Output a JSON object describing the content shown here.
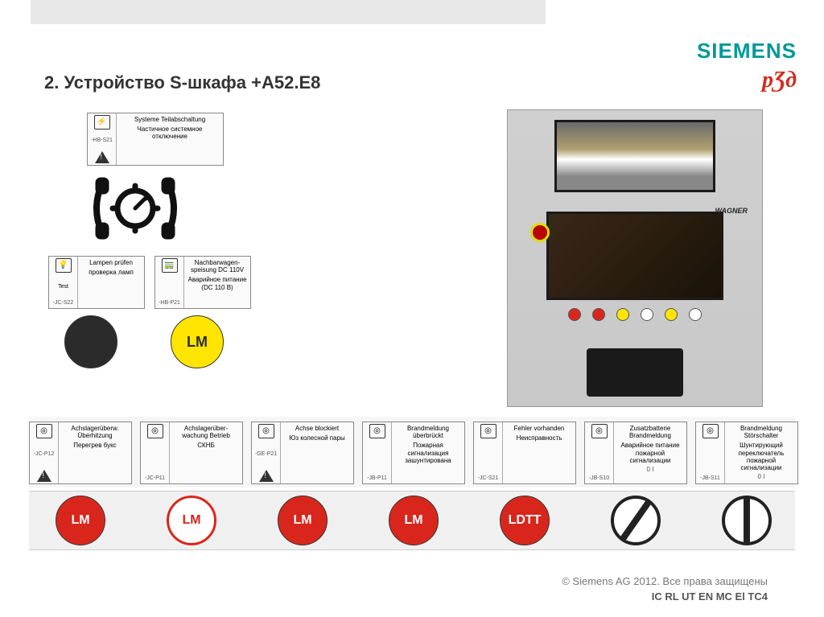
{
  "branding": {
    "siemens": "SIEMENS",
    "rzd": "рƷд"
  },
  "title": "2. Устройство S-шкафа +A52.E8",
  "colors": {
    "siemens_teal": "#009999",
    "rzd_red": "#d52b1e",
    "btn_black": "#2b2b2b",
    "btn_yellow": "#ffe500",
    "btn_red": "#d9261c",
    "btn_white": "#ffffff",
    "label_border": "#888888",
    "gray_strip": "#f0f0f0"
  },
  "top_label": {
    "code": "-HB-S21",
    "de": "Systeme Teilabschaltung",
    "ru": "Частичное системное отключение",
    "has_warning": true
  },
  "mid_labels": [
    {
      "code": "-JC-S22",
      "de": "Lampen prüfen",
      "ru": "проверка ламп",
      "icon_text": "Test"
    },
    {
      "code": "-HB-P21",
      "de": "Nachbarwagen-speisung DC 110V",
      "ru": "Аварийное питание (DC 110 В)"
    }
  ],
  "mid_buttons": [
    {
      "label": "",
      "color": "#2b2b2b",
      "text_color": "#ffffff"
    },
    {
      "label": "LM",
      "color": "#ffe500",
      "text_color": "#2b2b2b"
    }
  ],
  "bottom_labels": [
    {
      "code": "-JC-P12",
      "de": "Achslagerüberw. Überhitzung",
      "ru": "Перегрев букс",
      "has_warning": true
    },
    {
      "code": "-JC-P11",
      "de": "Achslagerüber-wachung Betrieb",
      "ru": "СКНБ",
      "has_warning": false
    },
    {
      "code": "-GE-P21",
      "de": "Achse blockiert",
      "ru": "Юз колесной пары",
      "has_warning": true
    },
    {
      "code": "-JB-P11",
      "de": "Brandmeldung überbrückt",
      "ru": "Пожарная сигнализация зашунтирована",
      "has_warning": false
    },
    {
      "code": "-JC-S21",
      "de": "Fehler vorhanden",
      "ru": "Неисправность",
      "has_warning": false
    },
    {
      "code": "-JB-S10",
      "de": "Zusatzbatterie Brandmeldung",
      "ru": "Аварийное питание пожарной сигнализации",
      "switch_01": true
    },
    {
      "code": "-JB-S11",
      "de": "Brandmeldung Störschalter",
      "ru": "Шунтирующий переключатель пожарной сигнализации",
      "switch_01": true
    }
  ],
  "bottom_buttons": [
    {
      "type": "lamp",
      "label": "LM",
      "color": "#d9261c",
      "text_color": "#ffffff"
    },
    {
      "type": "lamp",
      "label": "LM",
      "color": "#ffffff",
      "text_color": "#d9261c",
      "border": "#d9261c"
    },
    {
      "type": "lamp",
      "label": "LM",
      "color": "#d9261c",
      "text_color": "#ffffff"
    },
    {
      "type": "lamp",
      "label": "LM",
      "color": "#d9261c",
      "text_color": "#ffffff"
    },
    {
      "type": "lamp",
      "label": "LDTT",
      "color": "#d9261c",
      "text_color": "#ffffff"
    },
    {
      "type": "rotary",
      "rot": 35
    },
    {
      "type": "rotary",
      "rot": 0
    }
  ],
  "photo": {
    "brand": "WAGNER",
    "btn_row_colors": [
      "#d9261c",
      "#d9261c",
      "#ffe500",
      "#ffffff",
      "#ffe500",
      "#ffffff"
    ]
  },
  "footer": {
    "copyright": "© Siemens AG 2012. Все права защищены",
    "code": "IC RL UT EN MC El TC4"
  }
}
